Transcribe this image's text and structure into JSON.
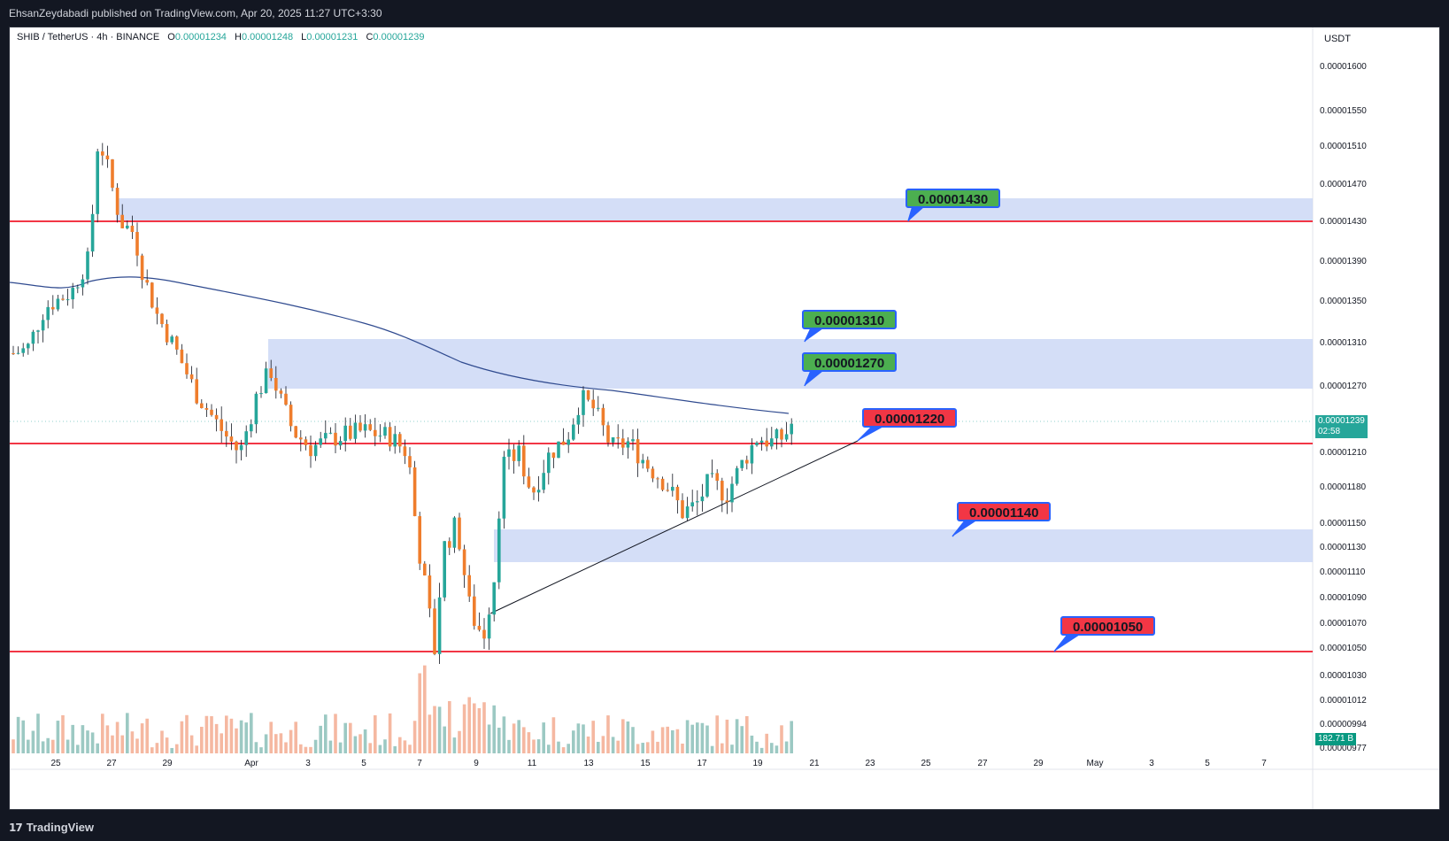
{
  "header": {
    "published_by": "EhsanZeydabadi published on TradingView.com, Apr 20, 2025 11:27 UTC+3:30"
  },
  "legend": {
    "symbol": "SHIB / TetherUS · 4h · BINANCE",
    "o_label": "O",
    "o_value": "0.00001234",
    "h_label": "H",
    "h_value": "0.00001248",
    "l_label": "L",
    "l_value": "0.00001231",
    "c_label": "C",
    "c_value": "0.00001239"
  },
  "footer": {
    "brand": "TradingView",
    "brand_icon": "tradingview-logo-icon"
  },
  "colors": {
    "up": "#26a69a",
    "down": "#ef7d2c",
    "resistance_line": "#f23645",
    "zone": "#c9d6f5",
    "ma_line": "#2f4a8f",
    "tag_green": "#4caf50",
    "tag_red": "#f23645",
    "tag_border": "#2962ff"
  },
  "chart_data": {
    "type": "candlestick",
    "title": "SHIB / TetherUS · 4h · BINANCE",
    "currency": "USDT",
    "y_ticks": [
      "0.00001600",
      "0.00001550",
      "0.00001510",
      "0.00001470",
      "0.00001430",
      "0.00001390",
      "0.00001350",
      "0.00001310",
      "0.00001270",
      "0.00001210",
      "0.00001180",
      "0.00001150",
      "0.00001130",
      "0.00001110",
      "0.00001090",
      "0.00001070",
      "0.00001050",
      "0.00001030",
      "0.00001012",
      "0.00000994",
      "0.00000977"
    ],
    "x_ticks": [
      "25",
      "27",
      "29",
      "Apr",
      "3",
      "5",
      "7",
      "9",
      "11",
      "13",
      "15",
      "17",
      "19",
      "21",
      "23",
      "25",
      "27",
      "29",
      "May",
      "3",
      "5",
      "7"
    ],
    "last_price": "0.00001239",
    "countdown": "02:58",
    "volume_label": "182.71 B",
    "key_levels": [
      {
        "label": "0.00001430",
        "type": "resistance",
        "color": "green"
      },
      {
        "label": "0.00001310",
        "type": "resistance",
        "color": "green"
      },
      {
        "label": "0.00001270",
        "type": "resistance",
        "color": "green"
      },
      {
        "label": "0.00001220",
        "type": "support",
        "color": "red"
      },
      {
        "label": "0.00001140",
        "type": "support",
        "color": "red"
      },
      {
        "label": "0.00001050",
        "type": "support",
        "color": "red"
      }
    ],
    "horizontal_lines": [
      1.43e-05,
      1.22e-05,
      1.05e-05
    ],
    "zones": [
      {
        "from": 1.43e-05,
        "to": 1.46e-05
      },
      {
        "from": 1.27e-05,
        "to": 1.31e-05
      },
      {
        "from": 1.12e-05,
        "to": 1.14e-05
      }
    ]
  }
}
